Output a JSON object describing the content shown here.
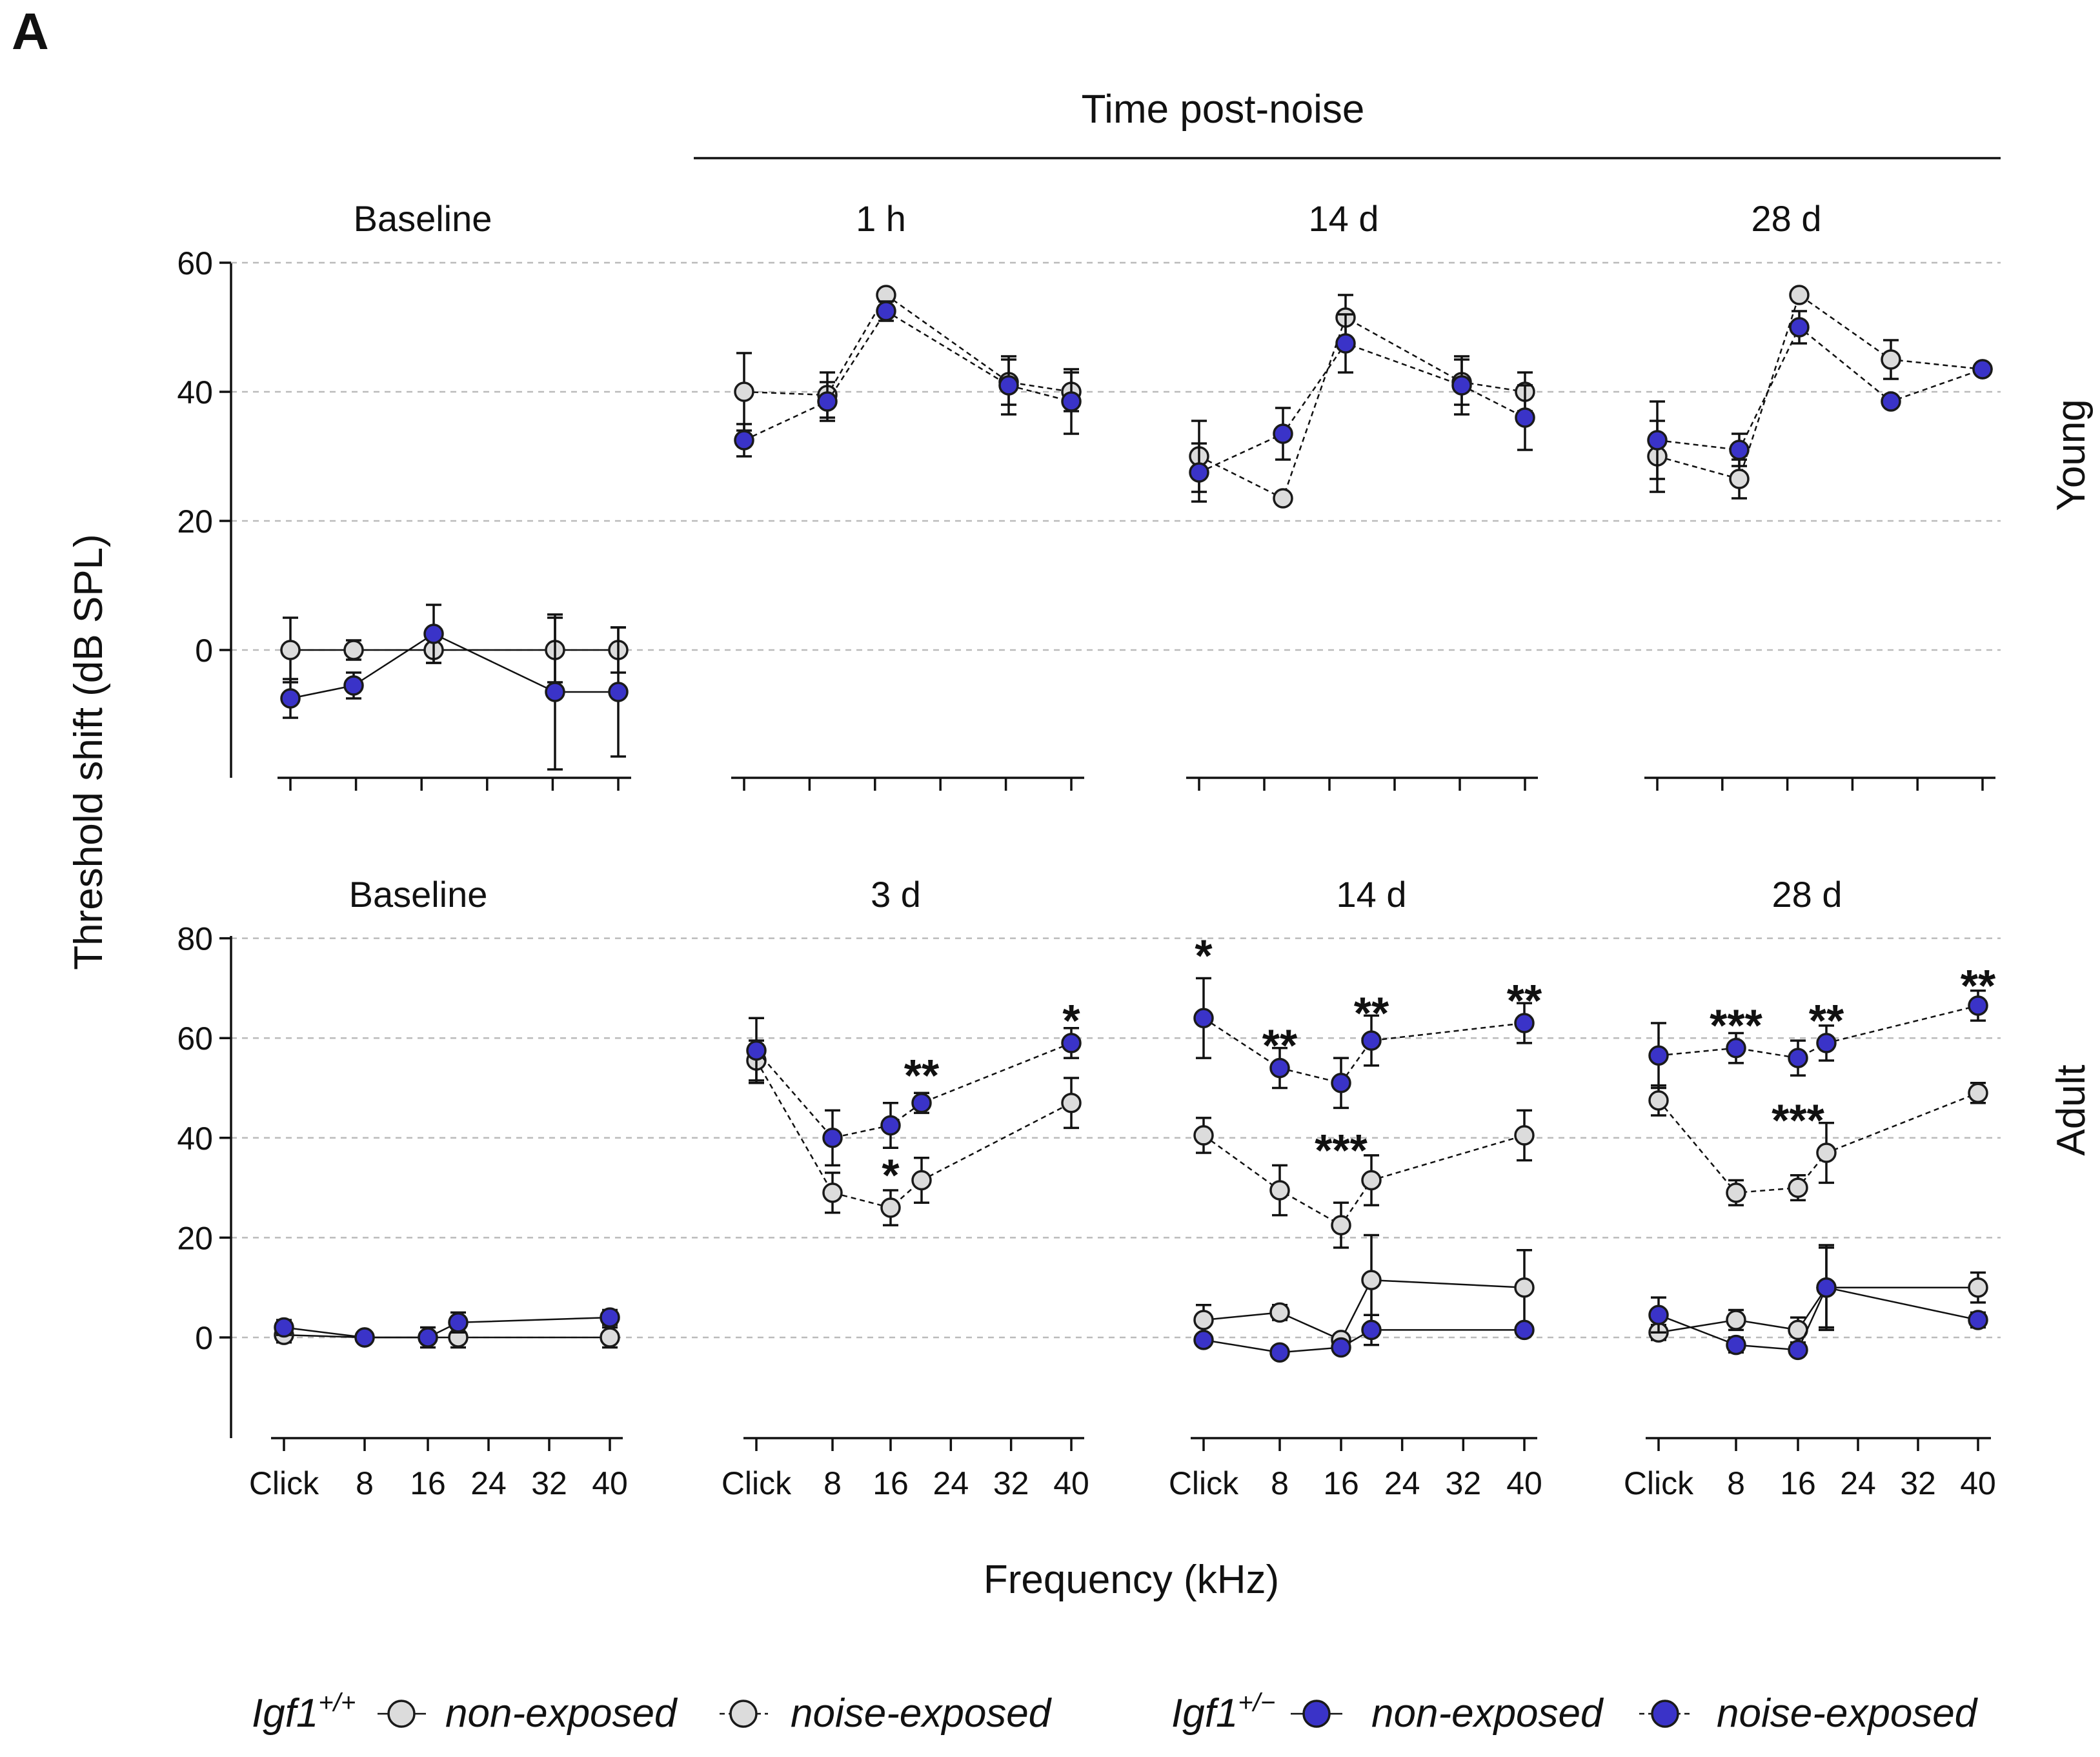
{
  "figure": {
    "panel_label": "A",
    "header": "Time post-noise",
    "ylabel": "Threshold shift (dB SPL)",
    "xlabel": "Frequency (kHz)"
  },
  "legend": {
    "g1_label": "Igf1",
    "g1_sup": "+/+",
    "g2_label": "Igf1",
    "g2_sup": "+/−",
    "non_exposed": "non-exposed",
    "noise_exposed": "noise-exposed"
  },
  "colors": {
    "wt": "#dcdcdc",
    "het": "#3a33c8",
    "stroke": "#1a1a1a"
  },
  "chart_data": [
    {
      "type": "scatter",
      "row": "Young",
      "rows_label": "Young",
      "yticks": [
        "60",
        "40",
        "20",
        "0"
      ],
      "ylim": [
        -20,
        60
      ],
      "gridlines": [
        60,
        40,
        20,
        0
      ],
      "x_categories": [
        "Click",
        "8",
        "16",
        "20",
        "28",
        "40"
      ],
      "xtick_labels": [
        "Click",
        "8",
        "16",
        "24",
        "32",
        "40"
      ],
      "panels": [
        {
          "title": "Baseline",
          "series": [
            {
              "group": "wt",
              "exposure": "non",
              "x": [
                "Click",
                "8",
                "16",
                "28",
                "40"
              ],
              "values": [
                0,
                0,
                0,
                0,
                0
              ],
              "err": [
                5,
                1.5,
                2,
                5,
                3.5
              ]
            },
            {
              "group": "het",
              "exposure": "non",
              "x": [
                "Click",
                "8",
                "16",
                "28",
                "40"
              ],
              "values": [
                -7.5,
                -5.5,
                2.5,
                -6.5,
                -6.5
              ],
              "err": [
                3,
                2,
                4.5,
                12,
                10
              ]
            }
          ]
        },
        {
          "title": "1 h",
          "series": [
            {
              "group": "wt",
              "exposure": "noise",
              "x": [
                "Click",
                "8",
                "16",
                "28",
                "40"
              ],
              "values": [
                40,
                39.5,
                55,
                41.5,
                40
              ],
              "err": [
                6,
                3.5,
                0.8,
                3.5,
                3
              ]
            },
            {
              "group": "het",
              "exposure": "noise",
              "x": [
                "Click",
                "8",
                "16",
                "28",
                "40"
              ],
              "values": [
                32.5,
                38.5,
                52.5,
                41,
                38.5
              ],
              "err": [
                2.5,
                3,
                1.5,
                4.5,
                5
              ]
            }
          ]
        },
        {
          "title": "14 d",
          "series": [
            {
              "group": "wt",
              "exposure": "noise",
              "x": [
                "Click",
                "8",
                "16",
                "28",
                "40"
              ],
              "values": [
                30,
                23.5,
                51.5,
                41.5,
                40
              ],
              "err": [
                5.5,
                0,
                3.5,
                3.5,
                3
              ]
            },
            {
              "group": "het",
              "exposure": "noise",
              "x": [
                "Click",
                "8",
                "16",
                "28",
                "40"
              ],
              "values": [
                27.5,
                33.5,
                47.5,
                41,
                36
              ],
              "err": [
                4.5,
                4,
                4.5,
                4.5,
                5
              ]
            }
          ]
        },
        {
          "title": "28 d",
          "series": [
            {
              "group": "wt",
              "exposure": "noise",
              "x": [
                "Click",
                "8",
                "16",
                "28",
                "40"
              ],
              "values": [
                30,
                26.5,
                55,
                45,
                43.5
              ],
              "err": [
                5.5,
                3,
                0.5,
                3,
                0
              ]
            },
            {
              "group": "het",
              "exposure": "noise",
              "x": [
                "Click",
                "8",
                "16",
                "28",
                "40"
              ],
              "values": [
                32.5,
                31,
                50,
                38.5,
                43.5
              ],
              "err": [
                6,
                2.5,
                2.5,
                0,
                0
              ]
            }
          ]
        }
      ]
    },
    {
      "type": "scatter",
      "row": "Adult",
      "rows_label": "Adult",
      "yticks": [
        "80",
        "60",
        "40",
        "20",
        "0"
      ],
      "ylim": [
        -20,
        80
      ],
      "gridlines": [
        80,
        60,
        40,
        20,
        0
      ],
      "x_categories": [
        "Click",
        "8",
        "16",
        "20",
        "28",
        "40"
      ],
      "xtick_labels": [
        "Click",
        "8",
        "16",
        "24",
        "32",
        "40"
      ],
      "panels": [
        {
          "title": "Baseline",
          "series": [
            {
              "group": "wt",
              "exposure": "non",
              "x": [
                "Click",
                "8",
                "16",
                "20",
                "40"
              ],
              "values": [
                0.5,
                0,
                0,
                0,
                0
              ],
              "err": [
                1.5,
                1,
                1,
                2,
                2
              ]
            },
            {
              "group": "het",
              "exposure": "non",
              "x": [
                "Click",
                "8",
                "16",
                "20",
                "40"
              ],
              "values": [
                2,
                0,
                0,
                3,
                4
              ],
              "err": [
                1.5,
                1,
                2,
                2,
                1.5
              ]
            }
          ],
          "stars": []
        },
        {
          "title": "3 d",
          "series": [
            {
              "group": "wt",
              "exposure": "noise",
              "x": [
                "Click",
                "8",
                "16",
                "20",
                "40"
              ],
              "values": [
                55.5,
                29,
                26,
                31.5,
                47
              ],
              "err": [
                4,
                4,
                3.5,
                4.5,
                5
              ]
            },
            {
              "group": "het",
              "exposure": "noise",
              "x": [
                "Click",
                "8",
                "16",
                "20",
                "40"
              ],
              "values": [
                57.5,
                40,
                42.5,
                47,
                59
              ],
              "err": [
                6.5,
                5.5,
                4.5,
                2,
                3
              ]
            }
          ],
          "stars": [
            {
              "x": "20",
              "label": "**",
              "y": 52
            },
            {
              "x": "16",
              "label": "*",
              "y": 32
            },
            {
              "x": "40",
              "label": "*",
              "y": 63
            }
          ]
        },
        {
          "title": "14 d",
          "series": [
            {
              "group": "wt",
              "exposure": "non",
              "x": [
                "Click",
                "8",
                "16",
                "20",
                "40"
              ],
              "values": [
                3.5,
                5,
                -0.5,
                11.5,
                10
              ],
              "err": [
                3,
                1.5,
                1,
                9,
                7.5
              ]
            },
            {
              "group": "het",
              "exposure": "non",
              "x": [
                "Click",
                "8",
                "16",
                "20",
                "40"
              ],
              "values": [
                -0.5,
                -3,
                -2,
                1.5,
                1.5
              ],
              "err": [
                1,
                0.5,
                1,
                3,
                1
              ]
            },
            {
              "group": "wt",
              "exposure": "noise",
              "x": [
                "Click",
                "8",
                "16",
                "20",
                "40"
              ],
              "values": [
                40.5,
                29.5,
                22.5,
                31.5,
                40.5
              ],
              "err": [
                3.5,
                5,
                4.5,
                5,
                5
              ]
            },
            {
              "group": "het",
              "exposure": "noise",
              "x": [
                "Click",
                "8",
                "16",
                "20",
                "40"
              ],
              "values": [
                64,
                54,
                51,
                59.5,
                63
              ],
              "err": [
                8,
                4,
                5,
                5,
                4
              ]
            }
          ],
          "stars": [
            {
              "x": "Click",
              "label": "*",
              "y": 76
            },
            {
              "x": "8",
              "label": "**",
              "y": 58
            },
            {
              "x": "20",
              "label": "**",
              "y": 64.5
            },
            {
              "x": "40",
              "label": "**",
              "y": 67
            },
            {
              "x": "16",
              "label": "***",
              "y": 37
            }
          ]
        },
        {
          "title": "28 d",
          "series": [
            {
              "group": "wt",
              "exposure": "non",
              "x": [
                "Click",
                "8",
                "16",
                "20",
                "40"
              ],
              "values": [
                1,
                3.5,
                1.5,
                10,
                10
              ],
              "err": [
                1.5,
                2,
                2.5,
                8,
                3
              ]
            },
            {
              "group": "het",
              "exposure": "non",
              "x": [
                "Click",
                "8",
                "16",
                "20",
                "40"
              ],
              "values": [
                4.5,
                -1.5,
                -2.5,
                10,
                3.5
              ],
              "err": [
                3.5,
                1.5,
                1,
                8.5,
                1.5
              ]
            },
            {
              "group": "wt",
              "exposure": "noise",
              "x": [
                "Click",
                "8",
                "16",
                "20",
                "40"
              ],
              "values": [
                47.5,
                29,
                30,
                37,
                49
              ],
              "err": [
                3,
                2.5,
                2.5,
                6,
                2
              ]
            },
            {
              "group": "het",
              "exposure": "noise",
              "x": [
                "Click",
                "8",
                "16",
                "20",
                "40"
              ],
              "values": [
                56.5,
                58,
                56,
                59,
                66.5
              ],
              "err": [
                6.5,
                3,
                3.5,
                3.5,
                3
              ]
            }
          ],
          "stars": [
            {
              "x": "8",
              "label": "***",
              "y": 62
            },
            {
              "x": "20",
              "label": "**",
              "y": 63
            },
            {
              "x": "40",
              "label": "**",
              "y": 70
            },
            {
              "x": "16",
              "label": "***",
              "y": 43
            }
          ]
        }
      ]
    }
  ]
}
